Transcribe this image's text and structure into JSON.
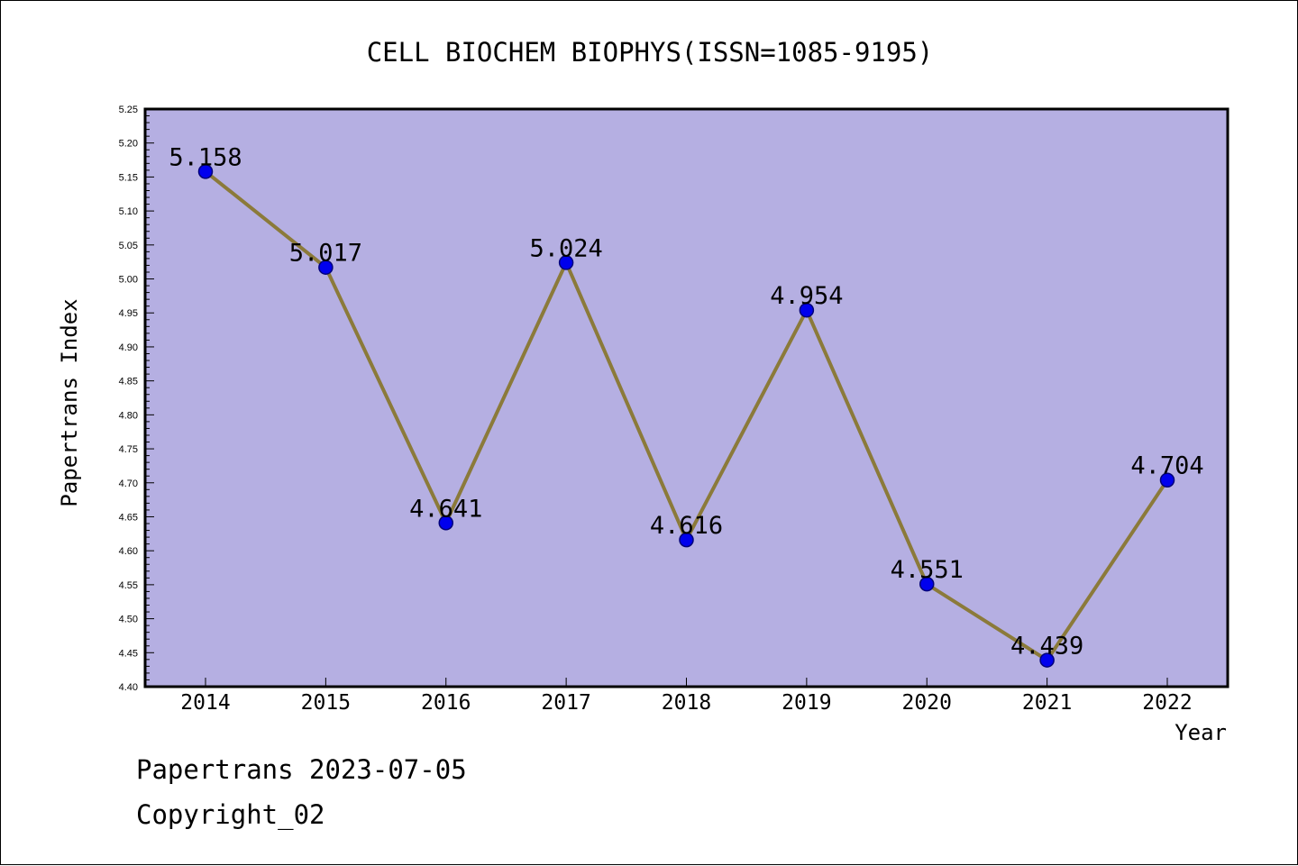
{
  "footer": {
    "generated": "Papertrans 2023-07-05",
    "copyright": "Copyright_02"
  },
  "colors": {
    "plot_background": "#b5afe2",
    "line": "#8b7a3a",
    "marker_fill": "#0000ee",
    "marker_stroke": "#00007a"
  },
  "chart_data": {
    "type": "line",
    "title": "CELL BIOCHEM BIOPHYS(ISSN=1085-9195)",
    "xlabel": "Year",
    "ylabel": "Papertrans Index",
    "categories": [
      "2014",
      "2015",
      "2016",
      "2017",
      "2018",
      "2019",
      "2020",
      "2021",
      "2022"
    ],
    "series": [
      {
        "values": [
          5.158,
          5.017,
          4.641,
          5.024,
          4.616,
          4.954,
          4.551,
          4.439,
          4.704
        ],
        "labels": [
          "5.158",
          "5.017",
          "4.641",
          "5.024",
          "4.616",
          "4.954",
          "4.551",
          "4.439",
          "4.704"
        ]
      }
    ],
    "ylim": [
      4.4,
      5.25
    ],
    "yticks": [
      "4.40",
      "4.45",
      "4.50",
      "4.55",
      "4.60",
      "4.65",
      "4.70",
      "4.75",
      "4.80",
      "4.85",
      "4.90",
      "4.95",
      "5.00",
      "5.05",
      "5.10",
      "5.15",
      "5.20",
      "5.25"
    ],
    "grid": false,
    "legend": "none"
  }
}
